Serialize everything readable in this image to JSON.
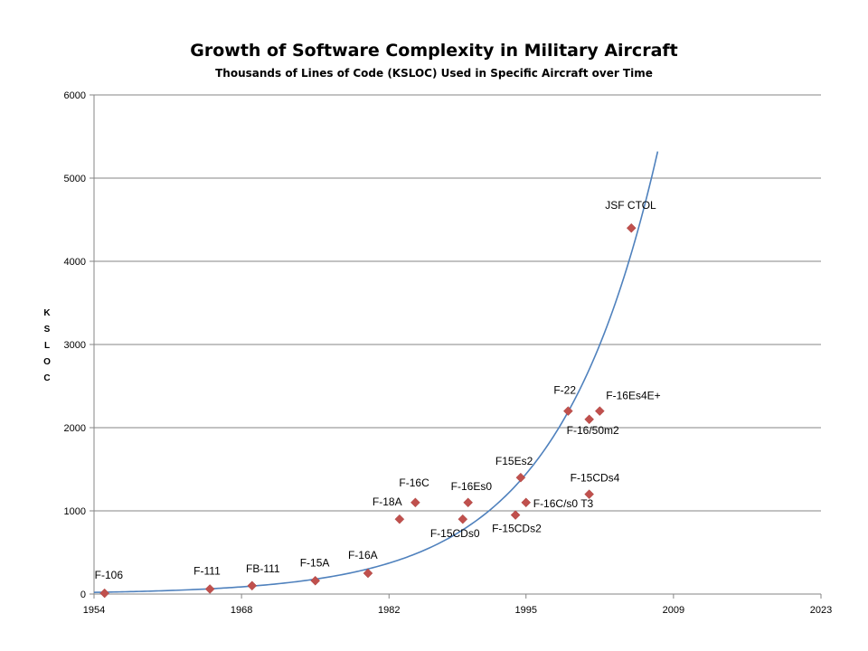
{
  "chart_data": {
    "type": "scatter",
    "title": "Growth of Software Complexity in Military Aircraft",
    "subtitle": "Thousands of Lines of Code (KSLOC) Used in Specific Aircraft over Time",
    "xlabel": "",
    "ylabel": "KSLOC",
    "ylabel_letters": [
      "K",
      "S",
      "L",
      "O",
      "C"
    ],
    "xlim": [
      1954,
      2023
    ],
    "ylim": [
      0,
      6000
    ],
    "x_ticks": [
      1954,
      1968,
      1982,
      1995,
      2009,
      2023
    ],
    "y_ticks": [
      0,
      1000,
      2000,
      3000,
      4000,
      5000,
      6000
    ],
    "grid": true,
    "points": [
      {
        "label": "F-106",
        "x": 1955,
        "y": 10
      },
      {
        "label": "F-111",
        "x": 1965,
        "y": 60
      },
      {
        "label": "FB-111",
        "x": 1969,
        "y": 100
      },
      {
        "label": "F-15A",
        "x": 1975,
        "y": 160
      },
      {
        "label": "F-16A",
        "x": 1980,
        "y": 250
      },
      {
        "label": "F-18A",
        "x": 1983,
        "y": 900
      },
      {
        "label": "F-16C",
        "x": 1984.5,
        "y": 1100
      },
      {
        "label": "F-15CDs0",
        "x": 1989,
        "y": 900
      },
      {
        "label": "F-16Es0",
        "x": 1989.5,
        "y": 1100
      },
      {
        "label": "F-15CDs2",
        "x": 1994,
        "y": 950
      },
      {
        "label": "F15Es2",
        "x": 1994.5,
        "y": 1400
      },
      {
        "label": "F-16C/s0 T3",
        "x": 1995,
        "y": 1100
      },
      {
        "label": "F-22",
        "x": 1999,
        "y": 2200
      },
      {
        "label": "F-16/50m2",
        "x": 2001,
        "y": 2100
      },
      {
        "label": "F-15CDs4",
        "x": 2001,
        "y": 1200
      },
      {
        "label": "F-16Es4E+",
        "x": 2002,
        "y": 2200
      },
      {
        "label": "JSF CTOL",
        "x": 2005,
        "y": 4400
      }
    ],
    "trendline": {
      "type": "exponential",
      "x_start": 1954,
      "x_end": 2007.5,
      "y_start": 20,
      "y_end": 5320
    },
    "colors": {
      "marker": "#C0504D",
      "trend": "#4F81BD",
      "grid": "#868686",
      "axis": "#868686"
    }
  }
}
